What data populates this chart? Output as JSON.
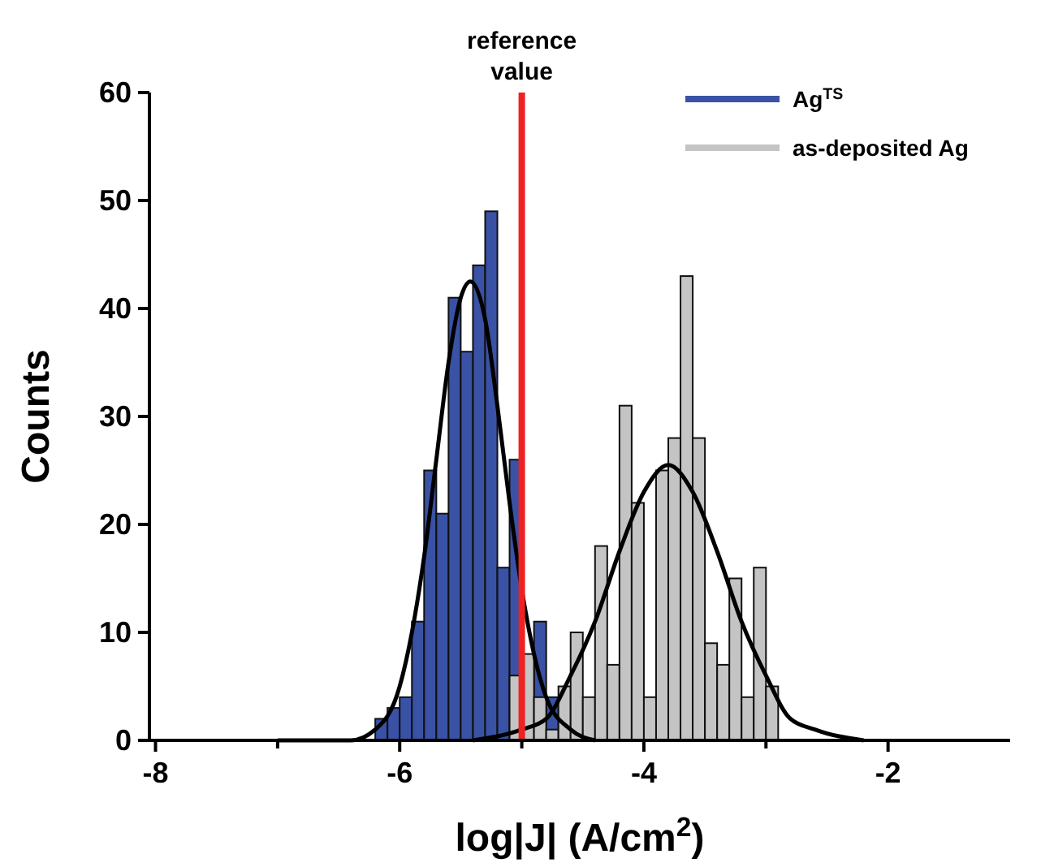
{
  "chart_data": {
    "type": "histogram",
    "xlabel": "log|J| (A/cm$^{2}$)",
    "ylabel": "Counts",
    "bins": [
      -6.2,
      -6.1,
      -6.0,
      -5.9,
      -5.8,
      -5.7,
      -5.6,
      -5.5,
      -5.4,
      -5.3,
      -5.2,
      -5.1,
      -5.0,
      -4.9,
      -4.8,
      -4.7,
      -4.6,
      -4.5,
      -4.4,
      -4.3,
      -4.2,
      -4.1,
      -4.0,
      -3.9,
      -3.8,
      -3.7,
      -3.6,
      -3.5,
      -3.4,
      -3.3,
      -3.2,
      -3.1,
      -3.0,
      -2.9
    ],
    "series": [
      {
        "name": "Ag$^{TS}$",
        "color": "#3a52a5",
        "values": [
          2,
          3,
          4,
          11,
          25,
          21,
          41,
          36,
          44,
          49,
          16,
          26,
          null,
          11,
          4,
          null,
          null,
          null,
          null,
          null,
          null,
          null,
          null,
          null,
          null,
          null,
          null,
          null,
          null,
          null,
          null,
          null,
          null
        ]
      },
      {
        "name": "as-deposited Ag",
        "color": "#c4c4c4",
        "values": [
          null,
          null,
          null,
          null,
          null,
          null,
          null,
          null,
          null,
          null,
          null,
          6,
          8,
          4,
          1,
          5,
          10,
          4,
          18,
          7,
          31,
          22,
          4,
          25,
          28,
          43,
          28,
          9,
          7,
          15,
          4,
          16,
          5
        ]
      },
      {
        "type": "line",
        "color": "#000000",
        "x": [
          -7.0,
          -6.4,
          -6.2,
          -6.0,
          -5.9,
          -5.8,
          -5.7,
          -5.6,
          -5.5,
          -5.42,
          -5.3,
          -5.2,
          -5.1,
          -5.0,
          -4.9,
          -4.8,
          -4.6,
          -4.4
        ],
        "values": [
          0,
          0,
          1,
          5,
          10,
          17,
          26,
          35,
          41,
          42.5,
          39,
          31,
          22,
          14,
          8,
          4,
          1,
          0
        ]
      },
      {
        "type": "line",
        "color": "#000000",
        "x": [
          -5.4,
          -5.0,
          -4.8,
          -4.6,
          -4.4,
          -4.2,
          -4.0,
          -3.8,
          -3.6,
          -3.4,
          -3.2,
          -3.0,
          -2.8,
          -2.6,
          -2.2
        ],
        "values": [
          0,
          1,
          2,
          6,
          11,
          17.5,
          23,
          25.5,
          23,
          17.5,
          11,
          6,
          2,
          1,
          0
        ]
      }
    ],
    "xlim": [
      -8.05,
      -1
    ],
    "xticks": [
      -8,
      {
        "value": -7,
        "label": null
      },
      -6,
      {
        "value": -5,
        "label": null
      },
      -4,
      {
        "value": -3,
        "label": null
      },
      -2
    ],
    "ylim": [
      0,
      60
    ],
    "yticks": [
      0,
      10,
      20,
      30,
      40,
      50,
      60
    ],
    "ref_lines": [
      {
        "axis": "x",
        "value": -5,
        "label": "reference value",
        "color": "#ee2222"
      }
    ],
    "legend": "top right",
    "grid": false
  }
}
